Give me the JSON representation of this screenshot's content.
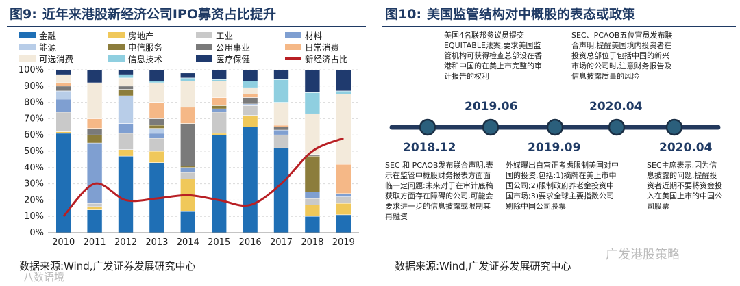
{
  "left": {
    "title_prefix": "图9:",
    "title": "近年来港股新经济公司IPO募资占比提升",
    "source": "数据来源:Wind,广发证券发展研究中心"
  },
  "right": {
    "title_prefix": "图10:",
    "title": "美国监管结构对中概股的表态或政策",
    "source": "数据来源:Wind,广发证券发展研究中心",
    "events": [
      {
        "date": "2018.12",
        "text": "SEC 和 PCAOB发布联合声明,表示在监管中概股财务报表方面面临一定问题:未来对于在审计底稿获取方面存在障碍的公司,可能会要求进一步的信息披露或限制其再融资"
      },
      {
        "date": "2019.06",
        "text": "美国4名联邦参议员提交EQUITABLE法案,要求美国监管机构可获得检查总部设在香港和中国的在美上市完整的审计报告的权利"
      },
      {
        "date": "2019.09",
        "text": "外媒曝出白宫正考虑限制美国对中国的投资,包括:1)摘牌在美上市中国公司;2)限制政府养老金投资中国市场;3)要求全球主要指数公司剔除中国公司股票"
      },
      {
        "date": "2020.04",
        "text": "SEC、PCAOB五位官员发布联合声明,提醒美国境内投资者在投资总部位于包括中国的新兴市场的公司时,注意财务报告及信息披露质量的风险"
      },
      {
        "date": "2020.04",
        "text": "SEC主席表示,因为信息披露的问题,提醒投资者近期不要将资金投入在美国上市的中国公司股票"
      }
    ]
  },
  "watermarks": {
    "bottom_left": "八数语境",
    "bottom_right": "广发港股策略"
  },
  "chart_data": {
    "type": "bar",
    "stacked": true,
    "categories": [
      "2010",
      "2011",
      "2012",
      "2013",
      "2014",
      "2015",
      "2016",
      "2017",
      "2018",
      "2019"
    ],
    "yticks": [
      "0%",
      "10%",
      "20%",
      "30%",
      "40%",
      "50%",
      "60%",
      "70%",
      "80%",
      "90%",
      "100%"
    ],
    "ylim": [
      0,
      100
    ],
    "grid": true,
    "legend_position": "top",
    "series": [
      {
        "name": "金融",
        "color": "#1f6fb5",
        "values": [
          61,
          14,
          47,
          43,
          13,
          60,
          65,
          52,
          10,
          11
        ]
      },
      {
        "name": "房地产",
        "color": "#f0c85a",
        "values": [
          1,
          2,
          4,
          7,
          20,
          1,
          7,
          0,
          7,
          7
        ]
      },
      {
        "name": "工业",
        "color": "#c9c9c9",
        "values": [
          12,
          2,
          10,
          8,
          4,
          13,
          6,
          8,
          4,
          4
        ]
      },
      {
        "name": "材料",
        "color": "#7f9fd1",
        "values": [
          8,
          37,
          6,
          3,
          3,
          2,
          1,
          3,
          4,
          2
        ]
      },
      {
        "name": "能源",
        "color": "#b8cde8",
        "values": [
          5,
          0,
          17,
          3,
          0,
          0,
          0,
          0,
          0,
          0
        ]
      },
      {
        "name": "电信服务",
        "color": "#8c7d3c",
        "values": [
          0,
          5,
          4,
          2,
          1,
          2,
          0,
          0,
          22,
          0
        ]
      },
      {
        "name": "公用事业",
        "color": "#7a7a7a",
        "values": [
          3,
          4,
          2,
          4,
          26,
          0,
          4,
          2,
          1,
          0
        ]
      },
      {
        "name": "日常消费",
        "color": "#f5b887",
        "values": [
          2,
          6,
          0,
          10,
          10,
          5,
          2,
          1,
          0,
          18
        ]
      },
      {
        "name": "可选消费",
        "color": "#f3eadb",
        "values": [
          5,
          22,
          5,
          12,
          16,
          10,
          4,
          14,
          25,
          43
        ]
      },
      {
        "name": "信息技术",
        "color": "#8fcfe0",
        "values": [
          0,
          0,
          2,
          1,
          2,
          1,
          4,
          14,
          13,
          2
        ]
      },
      {
        "name": "医疗保健",
        "color": "#1f3a6e",
        "values": [
          3,
          8,
          3,
          7,
          3,
          6,
          7,
          6,
          14,
          13
        ]
      }
    ],
    "line": {
      "name": "新经济占比",
      "color": "#b81f24",
      "values": [
        10,
        30,
        20,
        21,
        23,
        20,
        17,
        30,
        50,
        58
      ]
    }
  }
}
